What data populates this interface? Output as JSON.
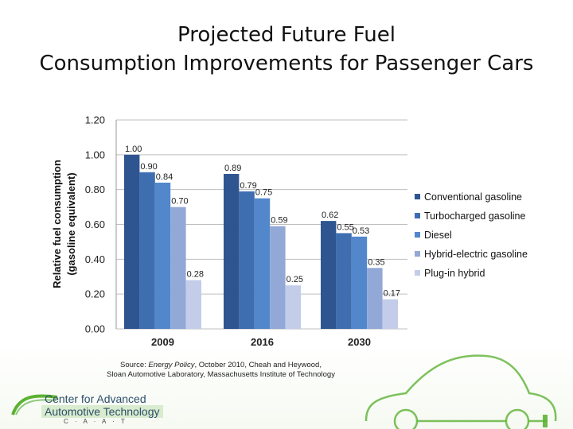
{
  "slide": {
    "title_line1": "Projected Future Fuel",
    "title_line2": "Consumption Improvements for Passenger Cars"
  },
  "source": {
    "prefix": "Source: ",
    "italic": "Energy Policy",
    "rest": ", October 2010, Cheah and Heywood,",
    "line2": "Sloan Automotive Laboratory, Massachusetts Institute of Technology"
  },
  "logo": {
    "line1": "Center for Advanced",
    "line2": "Automotive Technology",
    "acronym": "C · A · A · T"
  },
  "colors": {
    "conventional": "#2e5590",
    "turbo": "#3f6eb0",
    "diesel": "#5287cc",
    "hybrid": "#92a8d6",
    "plugin": "#c3cde9",
    "logo_green": "#5cb233"
  },
  "chart_data": {
    "type": "bar",
    "title": "",
    "ylabel_line1": "Relative fuel consumption",
    "ylabel_line2": "(gasoline equivalent)",
    "xlabel": "",
    "ylim": [
      0,
      1.2
    ],
    "yticks": [
      "0.00",
      "0.20",
      "0.40",
      "0.60",
      "0.80",
      "1.00",
      "1.20"
    ],
    "categories": [
      "2009",
      "2016",
      "2030"
    ],
    "series": [
      {
        "name": "Conventional gasoline",
        "values": [
          1.0,
          0.89,
          0.62
        ],
        "labels": [
          "1.00",
          "0.89",
          "0.62"
        ]
      },
      {
        "name": "Turbocharged gasoline",
        "values": [
          0.9,
          0.79,
          0.55
        ],
        "labels": [
          "0.90",
          "0.79",
          "0.55"
        ]
      },
      {
        "name": "Diesel",
        "values": [
          0.84,
          0.75,
          0.53
        ],
        "labels": [
          "0.84",
          "0.75",
          "0.53"
        ]
      },
      {
        "name": "Hybrid-electric gasoline",
        "values": [
          0.7,
          0.59,
          0.35
        ],
        "labels": [
          "0.70",
          "0.59",
          "0.35"
        ]
      },
      {
        "name": "Plug-in hybrid",
        "values": [
          0.28,
          0.25,
          0.17
        ],
        "labels": [
          "0.28",
          "0.25",
          "0.17"
        ]
      }
    ],
    "legend_position": "right",
    "grid": true
  }
}
